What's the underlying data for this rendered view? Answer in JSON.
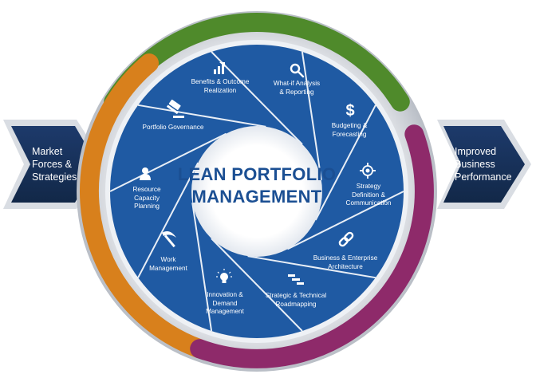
{
  "left_input": {
    "lines": [
      "Market",
      "Forces &",
      "Strategies"
    ]
  },
  "right_output": {
    "lines": [
      "Improved",
      "Business",
      "Performance"
    ]
  },
  "center": {
    "lines": [
      "LEAN PORTFOLIO",
      "MANAGEMENT"
    ]
  },
  "segments": [
    {
      "id": "benefits",
      "icon": "bar-chart-icon",
      "lines": [
        "Benefits & Outcome",
        "Realization"
      ]
    },
    {
      "id": "what-if",
      "icon": "magnifier-icon",
      "lines": [
        "What-if Analysis",
        "& Reporting"
      ]
    },
    {
      "id": "budgeting",
      "icon": "dollar-icon",
      "lines": [
        "Budgeting &",
        "Forecasting"
      ]
    },
    {
      "id": "strategy",
      "icon": "target-icon",
      "lines": [
        "Strategy",
        "Definition &",
        "Communication"
      ]
    },
    {
      "id": "architecture",
      "icon": "link-icon",
      "lines": [
        "Business & Enterprise",
        "Architecture"
      ]
    },
    {
      "id": "roadmapping",
      "icon": "roadmap-icon",
      "lines": [
        "Strategic & Technical",
        "Roadmapping"
      ]
    },
    {
      "id": "innovation",
      "icon": "lightbulb-icon",
      "lines": [
        "Innovation &",
        "Demand",
        "Management"
      ]
    },
    {
      "id": "work",
      "icon": "pickaxe-icon",
      "lines": [
        "Work",
        "Management"
      ]
    },
    {
      "id": "resource",
      "icon": "person-icon",
      "lines": [
        "Resource",
        "Capacity",
        "Planning"
      ]
    },
    {
      "id": "governance",
      "icon": "gavel-icon",
      "lines": [
        "Portfolio Governance"
      ]
    }
  ],
  "colors": {
    "navy": "#16305a",
    "blue": "#1f5aa3",
    "green": "#4f8a2b",
    "orange": "#d8801c",
    "purple": "#8e2a6a",
    "ring": "#c9cdd3"
  }
}
